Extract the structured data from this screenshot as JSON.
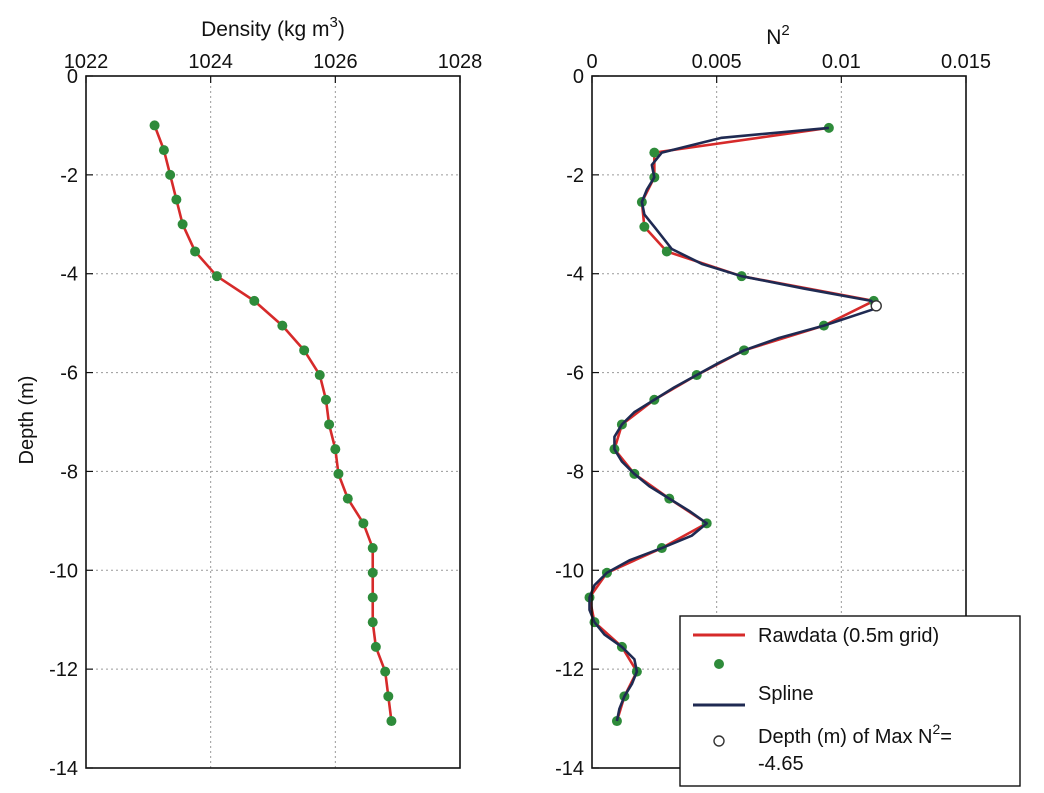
{
  "chart_data": [
    {
      "type": "line",
      "title": "Density (kg m",
      "title_sup": "3",
      "title_end": ")",
      "xlabel_position": "top",
      "ylabel": "Depth (m)",
      "xlim": [
        1022,
        1028
      ],
      "ylim": [
        -14,
        0
      ],
      "xticks": [
        1022,
        1024,
        1026,
        1028
      ],
      "xtick_labels": [
        "1022",
        "1024",
        "1026",
        "1028"
      ],
      "yticks": [
        0,
        -2,
        -4,
        -6,
        -8,
        -10,
        -12,
        -14
      ],
      "ytick_labels": [
        "0",
        "-2",
        "-4",
        "-6",
        "-8",
        "-10",
        "-12",
        "-14"
      ],
      "grid": true,
      "series": [
        {
          "color": "#d62a2a",
          "marker_color": "#2e8b3a",
          "x": [
            1023.1,
            1023.25,
            1023.35,
            1023.45,
            1023.55,
            1023.75,
            1024.1,
            1024.7,
            1025.15,
            1025.5,
            1025.75,
            1025.85,
            1025.9,
            1026.0,
            1026.05,
            1026.2,
            1026.45,
            1026.6,
            1026.6,
            1026.6,
            1026.6,
            1026.65,
            1026.8,
            1026.85,
            1026.9
          ],
          "y": [
            -1.0,
            -1.5,
            -2.0,
            -2.5,
            -3.0,
            -3.55,
            -4.05,
            -4.55,
            -5.05,
            -5.55,
            -6.05,
            -6.55,
            -7.05,
            -7.55,
            -8.05,
            -8.55,
            -9.05,
            -9.55,
            -10.05,
            -10.55,
            -11.05,
            -11.55,
            -12.05,
            -12.55,
            -13.05
          ]
        }
      ]
    },
    {
      "type": "line",
      "title": "N",
      "title_sup": "2",
      "xlabel_position": "top",
      "xlim": [
        0,
        0.015
      ],
      "ylim": [
        -14,
        0
      ],
      "xticks": [
        0,
        0.005,
        0.01,
        0.015
      ],
      "xtick_labels": [
        "0",
        "0.005",
        "0.01",
        "0.015"
      ],
      "yticks": [
        0,
        -2,
        -4,
        -6,
        -8,
        -10,
        -12,
        -14
      ],
      "ytick_labels": [
        "0",
        "-2",
        "-4",
        "-6",
        "-8",
        "-10",
        "-12",
        "-14"
      ],
      "grid": true,
      "series": [
        {
          "name": "Rawdata (0.5m grid)",
          "color": "#d62a2a",
          "x": [
            0.0095,
            0.0025,
            0.0025,
            0.002,
            0.0021,
            0.003,
            0.006,
            0.0113,
            0.0093,
            0.0061,
            0.0042,
            0.0025,
            0.0012,
            0.0009,
            0.0017,
            0.0031,
            0.0046,
            0.0028,
            0.0006,
            -0.0001,
            0.0001,
            0.0012,
            0.0018,
            0.0013,
            0.001
          ],
          "y": [
            -1.05,
            -1.55,
            -2.05,
            -2.55,
            -3.05,
            -3.55,
            -4.05,
            -4.55,
            -5.05,
            -5.55,
            -6.05,
            -6.55,
            -7.05,
            -7.55,
            -8.05,
            -8.55,
            -9.05,
            -9.55,
            -10.05,
            -10.55,
            -11.05,
            -11.55,
            -12.05,
            -12.55,
            -13.05
          ]
        },
        {
          "name": "",
          "marker_color": "#2e8b3a",
          "x": [
            0.0095,
            0.0025,
            0.0025,
            0.002,
            0.0021,
            0.003,
            0.006,
            0.0113,
            0.0093,
            0.0061,
            0.0042,
            0.0025,
            0.0012,
            0.0009,
            0.0017,
            0.0031,
            0.0046,
            0.0028,
            0.0006,
            -0.0001,
            0.0001,
            0.0012,
            0.0018,
            0.0013,
            0.001
          ],
          "y": [
            -1.05,
            -1.55,
            -2.05,
            -2.55,
            -3.05,
            -3.55,
            -4.05,
            -4.55,
            -5.05,
            -5.55,
            -6.05,
            -6.55,
            -7.05,
            -7.55,
            -8.05,
            -8.55,
            -9.05,
            -9.55,
            -10.05,
            -10.55,
            -11.05,
            -11.55,
            -12.05,
            -12.55,
            -13.05
          ]
        },
        {
          "name": "Spline",
          "color": "#1f2a52",
          "x": [
            0.0095,
            0.0052,
            0.0028,
            0.0024,
            0.0025,
            0.0022,
            0.002,
            0.0021,
            0.0025,
            0.0032,
            0.0044,
            0.006,
            0.0085,
            0.0112,
            0.0114,
            0.0093,
            0.0075,
            0.0061,
            0.0051,
            0.0042,
            0.0033,
            0.0025,
            0.0017,
            0.0012,
            0.0009,
            0.0009,
            0.0012,
            0.0017,
            0.0023,
            0.0031,
            0.0039,
            0.0046,
            0.004,
            0.0028,
            0.0015,
            0.0006,
            0.0001,
            -0.0001,
            -0.0001,
            0.0001,
            0.0005,
            0.0012,
            0.0017,
            0.0018,
            0.0016,
            0.0013,
            0.0011,
            0.001
          ],
          "y": [
            -1.05,
            -1.25,
            -1.55,
            -1.8,
            -2.05,
            -2.3,
            -2.55,
            -2.8,
            -3.05,
            -3.5,
            -3.8,
            -4.05,
            -4.3,
            -4.55,
            -4.7,
            -5.05,
            -5.3,
            -5.55,
            -5.8,
            -6.05,
            -6.3,
            -6.55,
            -6.8,
            -7.05,
            -7.3,
            -7.55,
            -7.8,
            -8.05,
            -8.3,
            -8.55,
            -8.8,
            -9.05,
            -9.3,
            -9.55,
            -9.8,
            -10.05,
            -10.3,
            -10.55,
            -10.8,
            -11.05,
            -11.3,
            -11.55,
            -11.8,
            -12.05,
            -12.3,
            -12.55,
            -12.8,
            -13.05
          ]
        },
        {
          "name": "Depth (m) of Max N",
          "name_sup": "2",
          "name_end": "=",
          "value_label": "-4.65",
          "marker": "open-circle",
          "x": [
            0.0114
          ],
          "y": [
            -4.65
          ]
        }
      ],
      "legend": {
        "position": "bottom-right",
        "items": [
          {
            "label": "Rawdata (0.5m grid)",
            "kind": "line",
            "color": "#d62a2a"
          },
          {
            "label": "",
            "kind": "dot",
            "color": "#2e8b3a"
          },
          {
            "label": "Spline",
            "kind": "line",
            "color": "#1f2a52"
          },
          {
            "label": "Depth (m) of Max N",
            "sup": "2",
            "tail": "=",
            "line2": "-4.65",
            "kind": "open-circle",
            "color": "#333333"
          }
        ]
      }
    }
  ]
}
